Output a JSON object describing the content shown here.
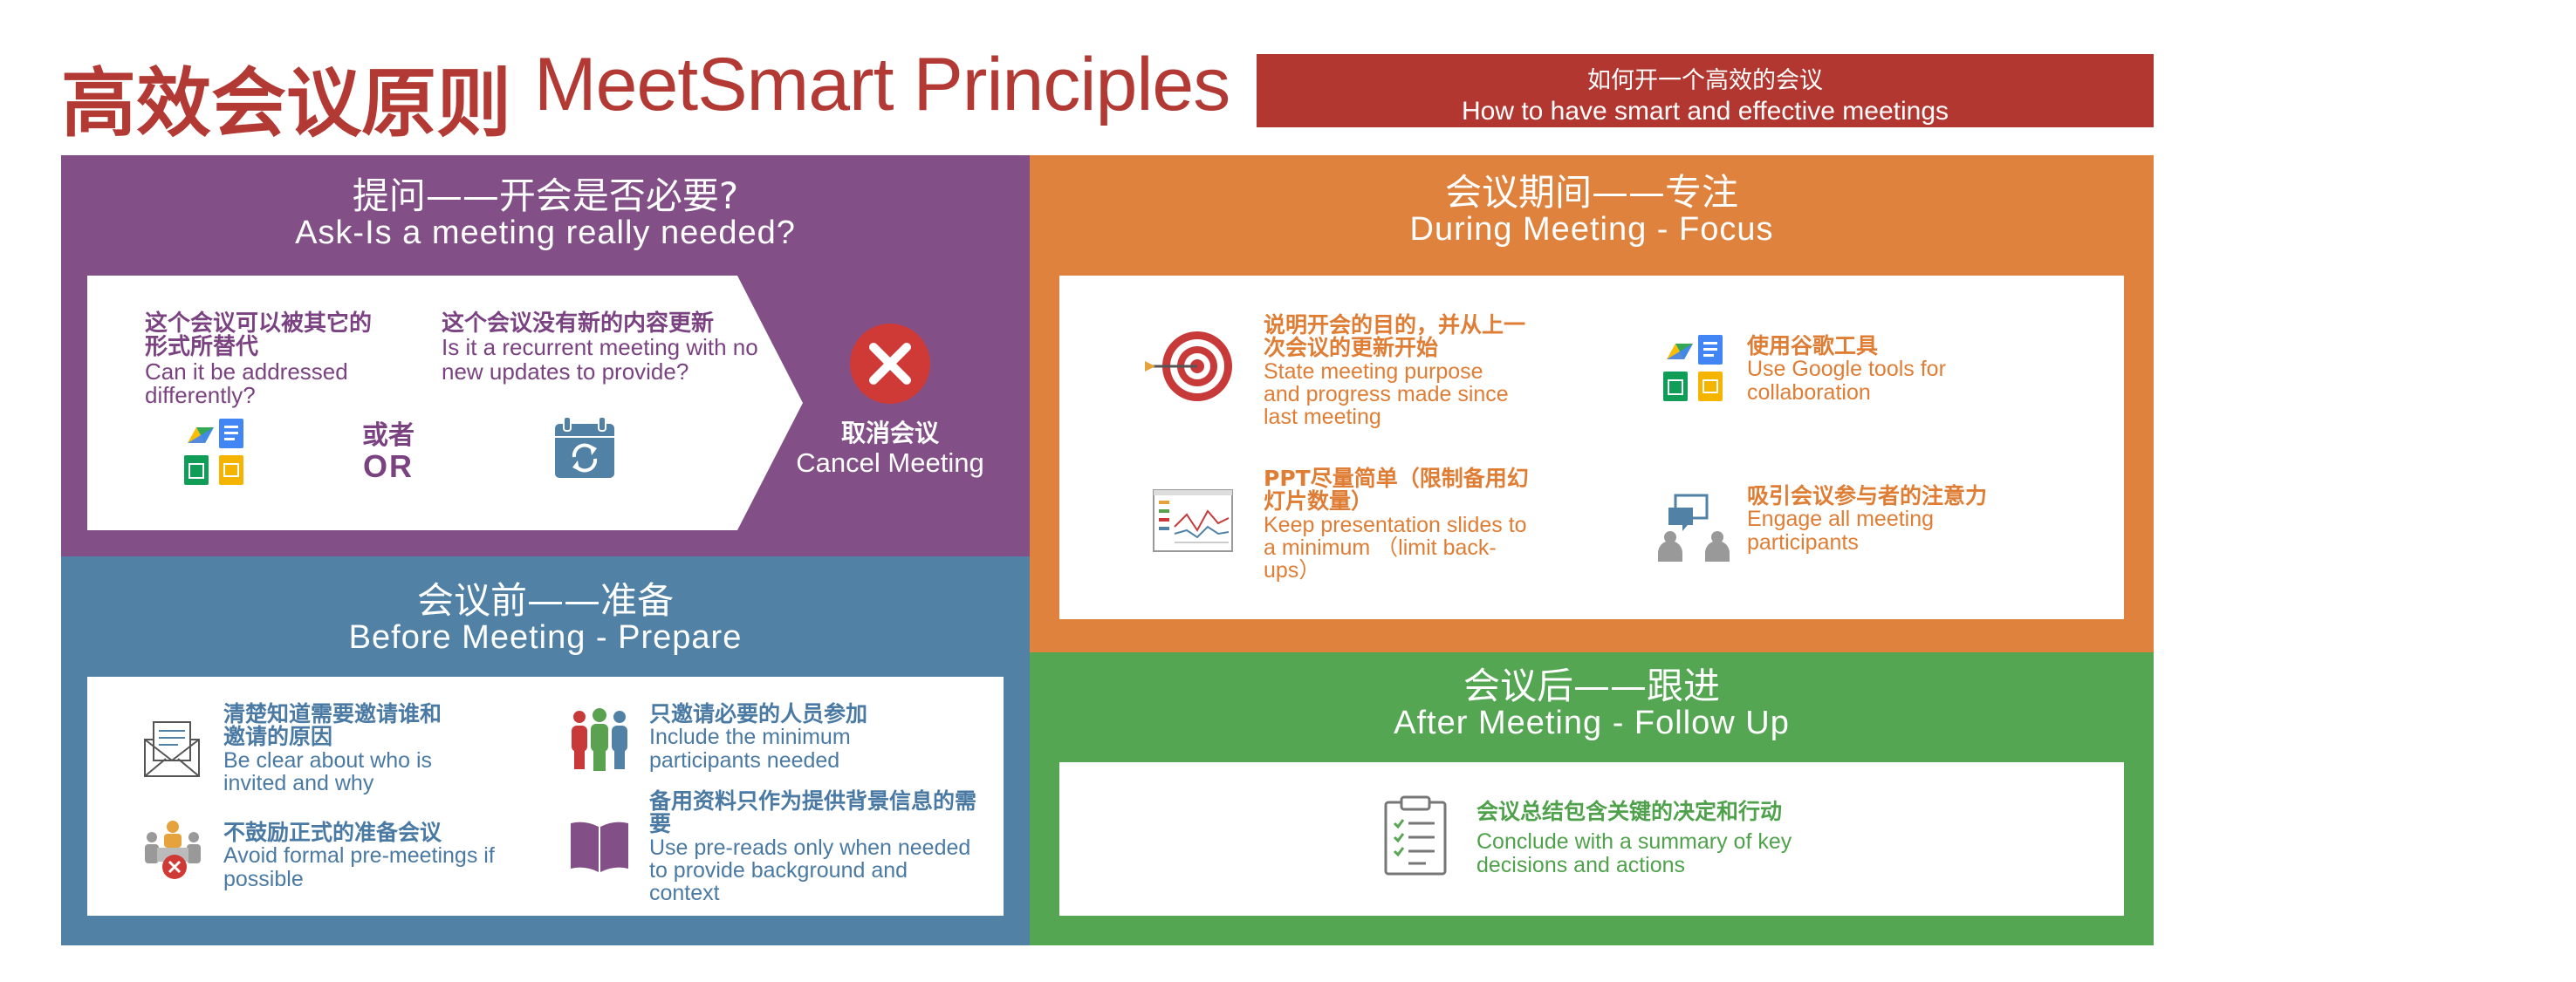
{
  "header": {
    "title_zh": "高效会议原则",
    "title_en": "MeetSmart Principles",
    "banner_zh": "如何开一个高效的会议",
    "banner_en": "How to have smart and effective meetings"
  },
  "ask": {
    "title_zh": "提问——开会是否必要?",
    "title_en": "Ask-Is a meeting really needed?",
    "item1_zh": "这个会议可以被其它的形式所替代",
    "item1_en": "Can it be addressed differently?",
    "item2_zh": "这个会议没有新的内容更新",
    "item2_en": "Is it a recurrent meeting with no new updates to provide?",
    "or_zh": "或者",
    "or_en": "OR",
    "cancel_zh": "取消会议",
    "cancel_en": "Cancel Meeting"
  },
  "before": {
    "title_zh": "会议前——准备",
    "title_en": "Before Meeting - Prepare",
    "item1_zh": "清楚知道需要邀请谁和邀请的原因",
    "item1_en": "Be clear about who is invited and why",
    "item2_zh": "只邀请必要的人员参加",
    "item2_en": "Include the minimum participants needed",
    "item3_zh": "不鼓励正式的准备会议",
    "item3_en": "Avoid formal pre-meetings if possible",
    "item4_zh": "备用资料只作为提供背景信息的需要",
    "item4_en": "Use pre-reads only when needed to provide background and context"
  },
  "during": {
    "title_zh": "会议期间——专注",
    "title_en": "During Meeting - Focus",
    "item1_zh": "说明开会的目的，并从上一次会议的更新开始",
    "item1_en": "State meeting purpose and progress made since last meeting",
    "item2_zh": "使用谷歌工具",
    "item2_en": "Use Google tools for collaboration",
    "item3_zh": "PPT尽量简单（限制备用幻灯片数量）",
    "item3_en": "Keep presentation slides to a minimum （limit back-ups）",
    "item4_zh": "吸引会议参与者的注意力",
    "item4_en": "Engage all meeting participants"
  },
  "after": {
    "title_zh": "会议后——跟进",
    "title_en": "After Meeting - Follow Up",
    "item1_zh": "会议总结包含关键的决定和行动",
    "item1_en": "Conclude with a summary of key decisions and actions"
  },
  "colors": {
    "red": "#b33a34",
    "purple": "#824f87",
    "blue": "#5182a6",
    "orange": "#df823e",
    "green": "#55a652"
  },
  "icons": [
    "google-apps-icon",
    "calendar-refresh-icon",
    "cancel-x-icon",
    "envelope-icon",
    "people-group-icon",
    "meeting-cancel-icon",
    "book-icon",
    "target-icon",
    "presentation-chart-icon",
    "chat-people-icon",
    "clipboard-checklist-icon"
  ]
}
